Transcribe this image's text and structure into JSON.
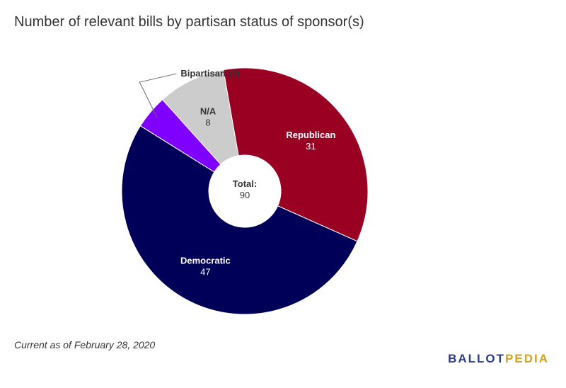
{
  "title": "Number of relevant bills by partisan status of sponsor(s)",
  "footnote": "Current as of February 28, 2020",
  "logo": {
    "part1": "BALLOT",
    "part2": "PEDIA"
  },
  "center_label": {
    "line1": "Total:",
    "line2": "90"
  },
  "chart_data": {
    "type": "pie",
    "donut": true,
    "title": "Number of relevant bills by partisan status of sponsor(s)",
    "total": 90,
    "start_category": "Bipartisan",
    "slices": [
      {
        "label": "Bipartisan",
        "value": 4,
        "color": "#7f00ff",
        "display": "Bipartisan (4)"
      },
      {
        "label": "N/A",
        "value": 8,
        "color": "#cccccc",
        "display": "8"
      },
      {
        "label": "Republican",
        "value": 31,
        "color": "#990021",
        "display": "31"
      },
      {
        "label": "Democratic",
        "value": 47,
        "color": "#000059",
        "display": "47"
      }
    ]
  }
}
